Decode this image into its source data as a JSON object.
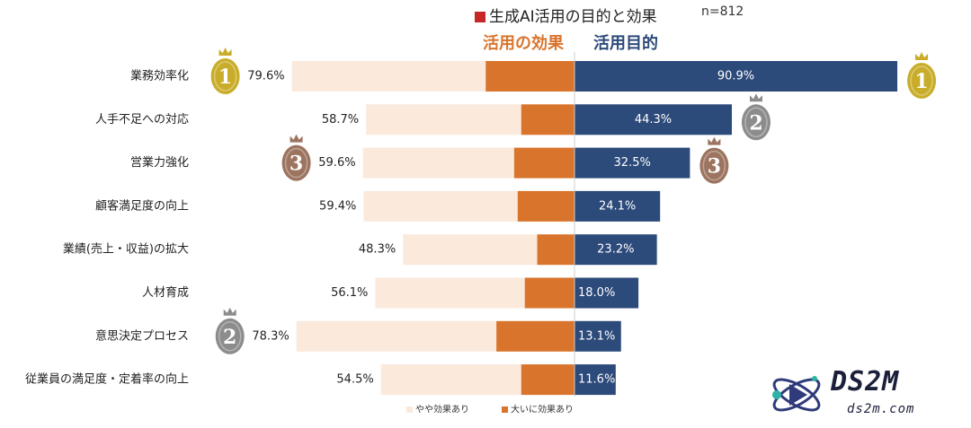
{
  "title": "生成AI活用の目的と効果",
  "sample_size": "n=812",
  "colors": {
    "light": "#fbe9dc",
    "dark_orange": "#d9742c",
    "navy": "#2c4a7a",
    "medal_gold": "#c9ad2a",
    "medal_silver": "#8c8c8c",
    "medal_bronze": "#9c7460"
  },
  "watermark": {
    "title": "DS2M",
    "subtitle": "ds2m.com"
  },
  "chart_data": {
    "type": "bar",
    "left_panel": {
      "header": "活用の効果"
    },
    "right_panel": {
      "header": "活用目的"
    },
    "categories": [
      "業務効率化",
      "人手不足への対応",
      "営業力強化",
      "顧客満足度の向上",
      "業績(売上・収益)の拡大",
      "人材育成",
      "意思決定プロセス",
      "従業員の満足度・定着率の向上"
    ],
    "series": [
      {
        "name": "大いに効果あり",
        "values": [
          25.0,
          15.0,
          17.0,
          16.0,
          10.5,
          14.0,
          22.0,
          15.0
        ]
      },
      {
        "name": "やや効果あり",
        "values": [
          54.6,
          43.7,
          42.6,
          43.4,
          37.8,
          42.1,
          56.3,
          39.5
        ]
      }
    ],
    "left_totals": [
      79.6,
      58.7,
      59.6,
      59.4,
      48.3,
      56.1,
      78.3,
      54.5
    ],
    "left_labels": [
      "79.6%",
      "58.7%",
      "59.6%",
      "59.4%",
      "48.3%",
      "56.1%",
      "78.3%",
      "54.5%"
    ],
    "right_values": [
      90.9,
      44.3,
      32.5,
      24.1,
      23.2,
      18.0,
      13.1,
      11.6
    ],
    "right_labels": [
      "90.9%",
      "44.3%",
      "32.5%",
      "24.1%",
      "23.2%",
      "18.0%",
      "13.1%",
      "11.6%"
    ],
    "left_medals": [
      {
        "row": 0,
        "rank": "1"
      },
      {
        "row": 6,
        "rank": "2"
      },
      {
        "row": 2,
        "rank": "3"
      }
    ],
    "right_medals": [
      {
        "row": 0,
        "rank": "1"
      },
      {
        "row": 1,
        "rank": "2"
      },
      {
        "row": 2,
        "rank": "3"
      }
    ],
    "legend_placement": "bottom-center",
    "grid": false
  }
}
